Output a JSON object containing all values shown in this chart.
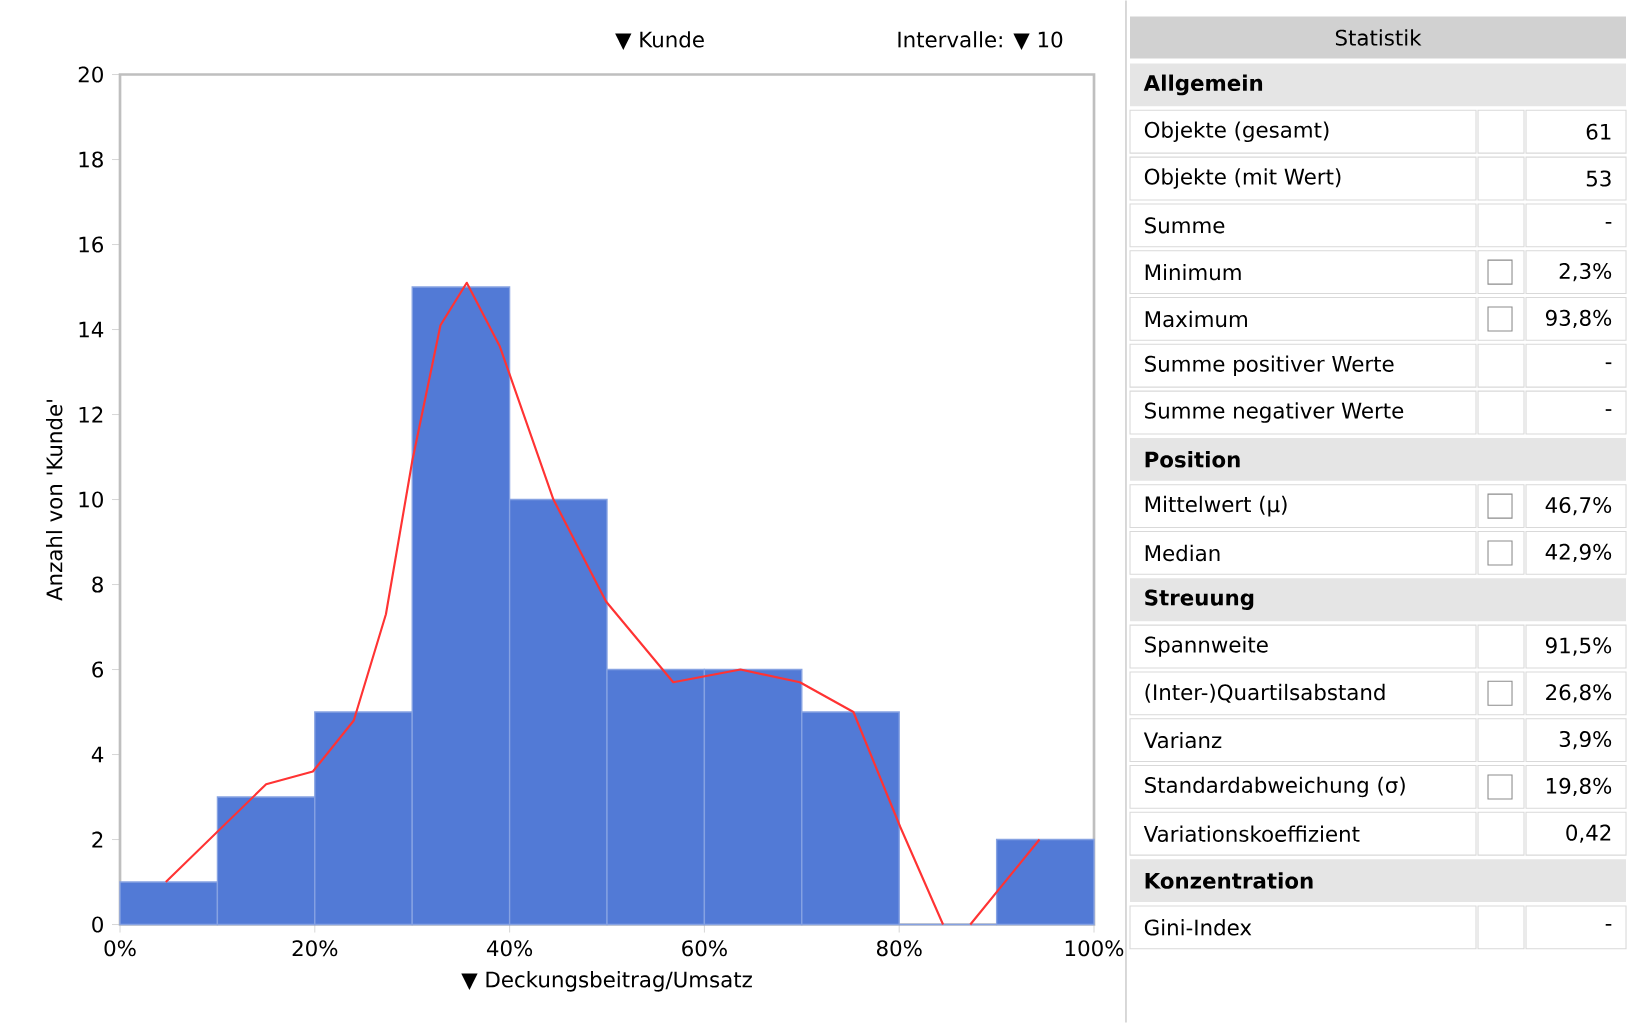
{
  "chart_data": [
    {
      "type": "histogram",
      "xlabel": "▼ Deckungsbeitrag/Umsatz",
      "ylabel": "Anzahl von 'Kunde'",
      "annotations": [
        "▼ Kunde",
        "Intervalle: ▼ 10"
      ],
      "bins": [
        0,
        10,
        20,
        30,
        40,
        50,
        60,
        70,
        80,
        90,
        100
      ],
      "values": [
        1,
        3,
        5,
        15,
        10,
        6,
        6,
        5,
        0,
        2
      ],
      "color": "#527ad6",
      "series": [
        {
          "type": "line",
          "color": "#ff3333",
          "x": [
            4.7,
            15,
            19.8,
            24,
            27.3,
            30,
            32.9,
            35.6,
            39,
            44.5,
            49.9,
            56.8,
            63.7,
            69.8,
            75.3,
            80.1,
            84.5,
            86,
            87.3,
            94.4
          ],
          "values": [
            1,
            3.3,
            3.6,
            4.8,
            7.3,
            10.9,
            14.1,
            15.1,
            13.6,
            10,
            7.6,
            5.7,
            6,
            5.7,
            5,
            2.3,
            0,
            null,
            0,
            2
          ]
        }
      ],
      "xlim": [
        0,
        100
      ],
      "ylim": [
        0,
        20
      ],
      "xticks": [
        {
          "value": 0,
          "label": "0%"
        },
        {
          "value": 20,
          "label": "20%"
        },
        {
          "value": 40,
          "label": "40%"
        },
        {
          "value": 60,
          "label": "60%"
        },
        {
          "value": 80,
          "label": "80%"
        },
        {
          "value": 100,
          "label": "100%"
        }
      ],
      "yticks": [
        0,
        2,
        4,
        6,
        8,
        10,
        12,
        14,
        16,
        18,
        20
      ],
      "grid": false
    },
    {
      "type": "other",
      "title": "Statistik",
      "categories": [
        "Allgemein",
        "Objekte (gesamt)",
        "Objekte (mit Wert)",
        "Summe",
        "Minimum",
        "Maximum",
        "Summe positiver Werte",
        "Summe negativer Werte",
        "Position",
        "Mittelwert (µ)",
        "Median",
        "Streuung",
        "Spannweite",
        "(Inter-)Quartilsabstand",
        "Varianz",
        "Standardabweichung (σ)",
        "Variationskoeffizient",
        "Konzentration",
        "Gini-Index"
      ],
      "value_labels": [
        null,
        "61",
        "53",
        "-",
        "2,3%",
        "93,8%",
        "-",
        "-",
        null,
        "46,7%",
        "42,9%",
        null,
        "91,5%",
        "26,8%",
        "3,9%",
        "19,8%",
        "0,42",
        null,
        "-"
      ]
    }
  ]
}
